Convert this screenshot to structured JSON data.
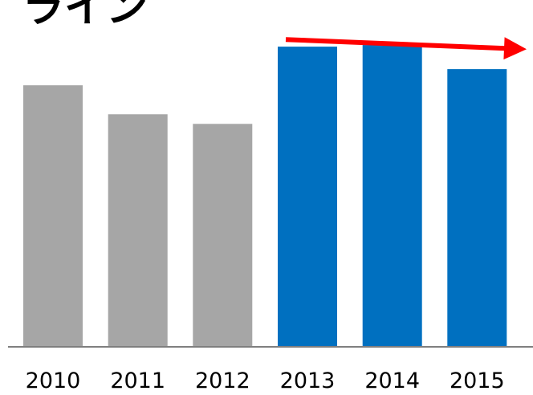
{
  "title_fragment": "ライン",
  "chart_data": {
    "type": "bar",
    "categories": [
      "2010",
      "2011",
      "2012",
      "2013",
      "2014",
      "2015"
    ],
    "values": [
      81,
      72,
      69,
      93,
      93.5,
      86
    ],
    "ylim": [
      0,
      100
    ],
    "grid": false,
    "bar_colors": [
      "#a6a6a6",
      "#a6a6a6",
      "#a6a6a6",
      "#0070c0",
      "#0070c0",
      "#0070c0"
    ],
    "baseline_color": "#7f7f7f",
    "annotation": {
      "type": "arrow",
      "color": "#ff0000",
      "from_value": 95.2,
      "to_value": 92.4,
      "description": "red arrow across the top of the 2013–2015 bars, sloping slightly downward"
    }
  }
}
